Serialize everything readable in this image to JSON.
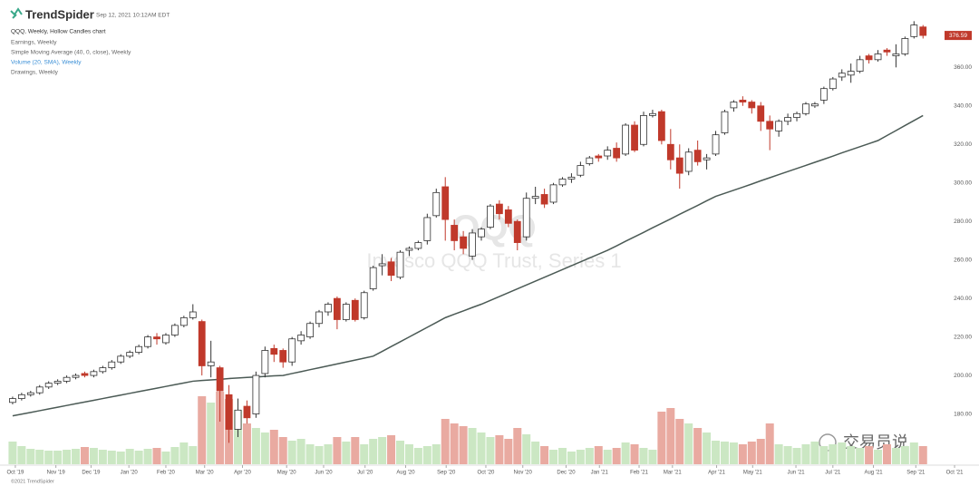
{
  "header": {
    "logo": "TrendSpider",
    "timestamp": "Sep 12, 2021 10:12AM EDT",
    "chart_name": "QQQ, Weekly, Hollow Candles chart",
    "legend": [
      "Earnings, Weekly",
      "Simple Moving Average (40, 0, close), Weekly",
      "Volume (20, SMA), Weekly",
      "Drawings, Weekly"
    ]
  },
  "chart_data": {
    "type": "candlestick",
    "watermark": "QQQ",
    "watermark_subtitle": "Invesco QQQ Trust, Series 1",
    "up_color": "#ffffff",
    "down_color": "#c0392b",
    "sma_color": "#4b5a55",
    "volume_up_color": "#cbe7c3",
    "volume_down_color": "#e9aaa1",
    "open": [
      186,
      188,
      190,
      191,
      194,
      196,
      197,
      199,
      201,
      200,
      202,
      204,
      207,
      210,
      212,
      215,
      220,
      217,
      221,
      226,
      230,
      228,
      205,
      204,
      190,
      172,
      184,
      180,
      201,
      214,
      213,
      207,
      218,
      220,
      227,
      233,
      240,
      229,
      239,
      230,
      245,
      257,
      259,
      251,
      265,
      266,
      270,
      283,
      298,
      278,
      272,
      262,
      272,
      277,
      289,
      286,
      280,
      272,
      292,
      294,
      290,
      299,
      302,
      304,
      310,
      314,
      314,
      318,
      315,
      330,
      320,
      335,
      337,
      320,
      313,
      306,
      317,
      312,
      315,
      326,
      339,
      343,
      342,
      340,
      332,
      327,
      332,
      334,
      336,
      340,
      343,
      349,
      355,
      356,
      358,
      366,
      364,
      369,
      366,
      367,
      376,
      381
    ],
    "high": [
      189,
      191,
      192,
      195,
      197,
      198,
      200,
      201,
      202,
      203,
      205,
      208,
      211,
      213,
      216,
      221,
      222,
      222,
      227,
      231,
      237,
      229,
      218,
      205,
      195,
      188,
      187,
      202,
      215,
      216,
      214,
      220,
      223,
      228,
      234,
      238,
      241,
      238,
      240,
      244,
      257,
      263,
      261,
      265,
      267,
      270,
      284,
      297,
      303,
      281,
      275,
      276,
      277,
      289,
      291,
      288,
      281,
      295,
      298,
      297,
      300,
      303,
      305,
      311,
      314,
      315,
      319,
      321,
      331,
      332,
      337,
      338,
      338,
      328,
      320,
      318,
      322,
      315,
      327,
      338,
      343,
      345,
      343,
      342,
      335,
      333,
      336,
      337,
      342,
      342,
      350,
      355,
      359,
      362,
      366,
      367,
      369,
      370,
      372,
      376,
      384,
      382
    ],
    "low": [
      185,
      187,
      189,
      190,
      193,
      195,
      196,
      198,
      199,
      199,
      201,
      203,
      206,
      209,
      211,
      214,
      216,
      216,
      220,
      225,
      229,
      200,
      199,
      176,
      165,
      168,
      175,
      178,
      199,
      207,
      204,
      205,
      216,
      219,
      225,
      231,
      224,
      228,
      228,
      229,
      244,
      252,
      249,
      250,
      262,
      265,
      268,
      282,
      270,
      265,
      263,
      260,
      270,
      276,
      281,
      277,
      265,
      270,
      289,
      287,
      289,
      298,
      300,
      303,
      309,
      311,
      312,
      311,
      314,
      316,
      319,
      334,
      320,
      307,
      297,
      304,
      309,
      307,
      314,
      325,
      337,
      340,
      336,
      327,
      317,
      324,
      330,
      332,
      335,
      339,
      341,
      348,
      353,
      352,
      357,
      362,
      363,
      366,
      360,
      366,
      375,
      375
    ],
    "close": [
      188,
      190,
      191,
      194,
      196,
      197,
      199,
      200,
      200,
      202,
      204,
      207,
      210,
      212,
      215,
      220,
      219,
      221,
      226,
      230,
      233,
      205,
      207,
      192,
      172,
      182,
      178,
      200,
      213,
      211,
      207,
      219,
      221,
      227,
      233,
      237,
      229,
      237,
      229,
      243,
      256,
      258,
      252,
      264,
      266,
      269,
      282,
      295,
      281,
      270,
      266,
      274,
      276,
      288,
      284,
      279,
      269,
      292,
      293,
      289,
      299,
      302,
      303,
      309,
      313,
      313,
      317,
      313,
      330,
      317,
      335,
      336,
      322,
      312,
      305,
      316,
      311,
      313,
      325,
      337,
      342,
      342,
      339,
      332,
      328,
      332,
      334,
      336,
      341,
      341,
      349,
      354,
      357,
      358,
      364,
      364,
      367,
      368,
      367,
      375,
      382,
      376.59
    ],
    "volume": [
      25,
      20,
      17,
      16,
      15,
      15,
      16,
      17,
      19,
      18,
      16,
      15,
      14,
      17,
      15,
      17,
      18,
      14,
      19,
      24,
      20,
      75,
      68,
      80,
      72,
      60,
      45,
      40,
      35,
      38,
      30,
      26,
      28,
      22,
      20,
      22,
      30,
      25,
      30,
      22,
      28,
      30,
      32,
      26,
      22,
      18,
      20,
      22,
      50,
      45,
      42,
      40,
      35,
      30,
      32,
      28,
      40,
      33,
      25,
      20,
      16,
      18,
      14,
      16,
      18,
      20,
      16,
      18,
      24,
      22,
      18,
      16,
      58,
      62,
      50,
      45,
      40,
      35,
      26,
      25,
      24,
      22,
      25,
      28,
      45,
      22,
      20,
      18,
      22,
      25,
      20,
      22,
      24,
      20,
      18,
      20,
      16,
      22,
      18,
      20,
      24,
      20
    ],
    "sma": [
      179,
      179.9,
      180.8,
      181.7,
      182.6,
      183.5,
      184.4,
      185.3,
      186.2,
      187.1,
      188,
      188.9,
      189.8,
      190.7,
      191.6,
      192.5,
      193.4,
      194.3,
      195.2,
      196.1,
      197,
      197.4,
      197.7,
      198,
      198.4,
      198.7,
      199,
      199.2,
      199.5,
      199.8,
      200,
      201,
      202,
      203,
      204,
      205,
      206,
      207,
      208,
      209,
      210,
      212.5,
      215,
      217.5,
      220,
      222.5,
      225,
      227.5,
      230,
      231.8,
      233.5,
      235.3,
      237,
      239,
      241,
      243,
      245,
      247,
      249,
      251,
      253,
      255,
      257,
      259,
      261,
      263,
      265,
      267.3,
      269.7,
      272,
      274.3,
      276.7,
      279,
      281.3,
      283.7,
      286,
      288.3,
      290.7,
      293,
      294.6,
      296.2,
      297.8,
      299.4,
      301.1,
      302.7,
      304.3,
      305.9,
      307.5,
      309.1,
      310.7,
      312.3,
      313.9,
      315.6,
      317.2,
      318.8,
      320.4,
      322,
      324.6,
      327.2,
      329.8,
      332.4,
      335
    ],
    "ylim": [
      152,
      395
    ],
    "yticks": [
      {
        "value": 180,
        "label": "180.00"
      },
      {
        "value": 200,
        "label": "200.00"
      },
      {
        "value": 220,
        "label": "220.00"
      },
      {
        "value": 240,
        "label": "240.00"
      },
      {
        "value": 260,
        "label": "260.00"
      },
      {
        "value": 280,
        "label": "280.00"
      },
      {
        "value": 300,
        "label": "300.00"
      },
      {
        "value": 320,
        "label": "320.00"
      },
      {
        "value": 340,
        "label": "340.00"
      },
      {
        "value": 360,
        "label": "360.00"
      }
    ],
    "xlim": [
      -1.4,
      105.4
    ],
    "xticks": [
      {
        "value": 0.3,
        "label": "Oct '19"
      },
      {
        "value": 4.8,
        "label": "Nov '19"
      },
      {
        "value": 8.7,
        "label": "Dec '19"
      },
      {
        "value": 12.9,
        "label": "Jan '20"
      },
      {
        "value": 17,
        "label": "Feb '20"
      },
      {
        "value": 21.3,
        "label": "Mar '20"
      },
      {
        "value": 25.5,
        "label": "Apr '20"
      },
      {
        "value": 30.4,
        "label": "May '20"
      },
      {
        "value": 34.5,
        "label": "Jun '20"
      },
      {
        "value": 39.1,
        "label": "Jul '20"
      },
      {
        "value": 43.6,
        "label": "Aug '20"
      },
      {
        "value": 48.1,
        "label": "Sep '20"
      },
      {
        "value": 52.5,
        "label": "Oct '20"
      },
      {
        "value": 56.6,
        "label": "Nov '20"
      },
      {
        "value": 61.4,
        "label": "Dec '20"
      },
      {
        "value": 65.1,
        "label": "Jan '21"
      },
      {
        "value": 69.5,
        "label": "Feb '21"
      },
      {
        "value": 73.2,
        "label": "Mar '21"
      },
      {
        "value": 78.1,
        "label": "Apr '21"
      },
      {
        "value": 82.1,
        "label": "May '21"
      },
      {
        "value": 86.9,
        "label": "Jun '21"
      },
      {
        "value": 91,
        "label": "Jul '21"
      },
      {
        "value": 95.5,
        "label": "Aug '21"
      },
      {
        "value": 100.2,
        "label": "Sep '21"
      },
      {
        "value": 104.5,
        "label": "Oct '21"
      }
    ],
    "grid": false
  },
  "footer": {
    "copyright": "©2021 TrendSpider",
    "watermark": "交易员说"
  }
}
